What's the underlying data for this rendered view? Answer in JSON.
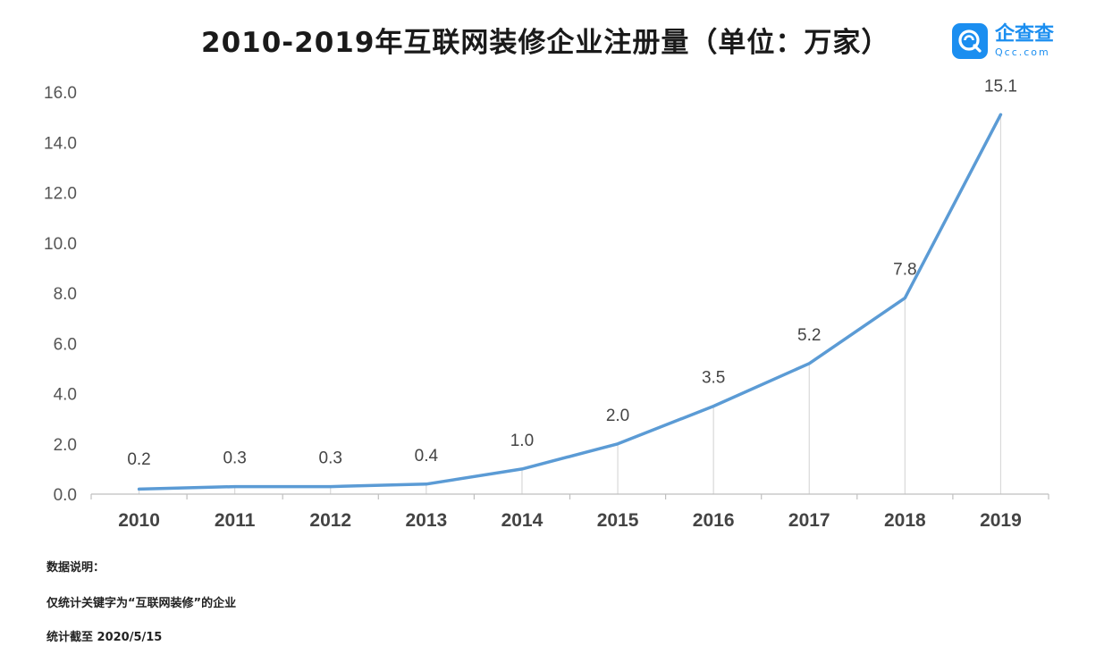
{
  "chart_data": {
    "type": "line",
    "title": "2010-2019年互联网装修企业注册量（单位：万家）",
    "categories": [
      "2010",
      "2011",
      "2012",
      "2013",
      "2014",
      "2015",
      "2016",
      "2017",
      "2018",
      "2019"
    ],
    "values": [
      0.2,
      0.3,
      0.3,
      0.4,
      1.0,
      2.0,
      3.5,
      5.2,
      7.8,
      15.1
    ],
    "data_labels": [
      "0.2",
      "0.3",
      "0.3",
      "0.4",
      "1.0",
      "2.0",
      "3.5",
      "5.2",
      "7.8",
      "15.1"
    ],
    "ylim": [
      0,
      16
    ],
    "yticks": [
      "0.0",
      "2.0",
      "4.0",
      "6.0",
      "8.0",
      "10.0",
      "12.0",
      "14.0",
      "16.0"
    ],
    "line_color": "#5b9bd5",
    "drop_line_color": "#d9d9d9",
    "grid": false,
    "legend": "none"
  },
  "brand": {
    "name": "企查查",
    "domain": "Qcc.com",
    "icon": "qcc-logo-icon",
    "color": "#1b8ef0"
  },
  "notes": {
    "heading": "数据说明：",
    "line1": "仅统计关键字为“互联网装修”的企业",
    "line2": "统计截至 2020/5/15"
  }
}
